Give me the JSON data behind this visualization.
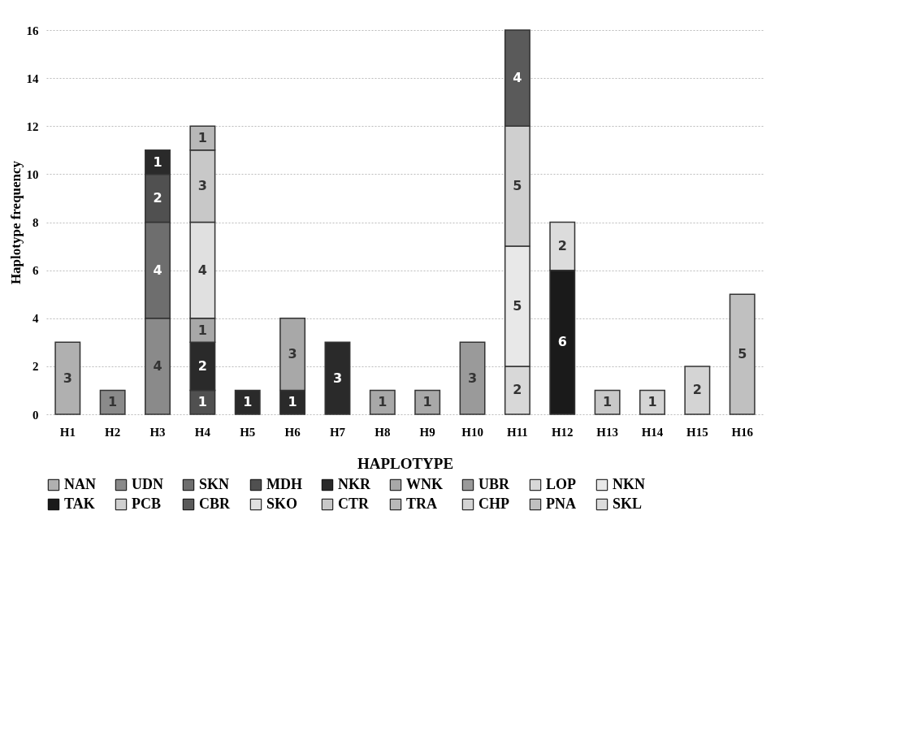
{
  "chart_data": {
    "type": "bar",
    "stacked": true,
    "xlabel": "HAPLOTYPE",
    "ylabel": "Haplotype frequency",
    "categories": [
      "H1",
      "H2",
      "H3",
      "H4",
      "H5",
      "H6",
      "H7",
      "H8",
      "H9",
      "H10",
      "H11",
      "H12",
      "H13",
      "H14",
      "H15",
      "H16"
    ],
    "ylim": [
      0,
      16
    ],
    "yticks": [
      0,
      2,
      4,
      6,
      8,
      10,
      12,
      14,
      16
    ],
    "grid": "y",
    "legend": "bottom",
    "data_labels": true,
    "series": [
      {
        "name": "NAN",
        "color": "#b0b0b0",
        "values": [
          3,
          null,
          null,
          null,
          null,
          null,
          null,
          null,
          null,
          null,
          null,
          null,
          null,
          null,
          null,
          null
        ]
      },
      {
        "name": "UDN",
        "color": "#8a8a8a",
        "values": [
          null,
          1,
          4,
          null,
          null,
          null,
          null,
          null,
          null,
          null,
          null,
          null,
          null,
          null,
          null,
          null
        ]
      },
      {
        "name": "SKN",
        "color": "#6e6e6e",
        "values": [
          null,
          null,
          4,
          null,
          null,
          null,
          null,
          null,
          null,
          null,
          null,
          null,
          null,
          null,
          null,
          null
        ]
      },
      {
        "name": "MDH",
        "color": "#505050",
        "values": [
          null,
          null,
          2,
          1,
          null,
          null,
          null,
          null,
          null,
          null,
          null,
          null,
          null,
          null,
          null,
          null
        ]
      },
      {
        "name": "NKR",
        "color": "#2a2a2a",
        "values": [
          null,
          null,
          1,
          2,
          1,
          1,
          3,
          null,
          null,
          null,
          null,
          null,
          null,
          null,
          null,
          null
        ]
      },
      {
        "name": "WNK",
        "color": "#a8a8a8",
        "values": [
          null,
          null,
          null,
          1,
          null,
          3,
          null,
          1,
          1,
          null,
          null,
          null,
          null,
          null,
          null,
          null
        ]
      },
      {
        "name": "UBR",
        "color": "#9a9a9a",
        "values": [
          null,
          null,
          null,
          null,
          null,
          null,
          null,
          null,
          null,
          3,
          null,
          null,
          null,
          null,
          null,
          null
        ]
      },
      {
        "name": "LOP",
        "color": "#d8d8d8",
        "values": [
          null,
          null,
          null,
          null,
          null,
          null,
          null,
          null,
          null,
          null,
          2,
          null,
          null,
          null,
          null,
          null
        ]
      },
      {
        "name": "NKN",
        "color": "#e8e8e8",
        "values": [
          null,
          null,
          null,
          null,
          null,
          null,
          null,
          null,
          null,
          null,
          5,
          null,
          null,
          null,
          null,
          null
        ]
      },
      {
        "name": "TAK",
        "color": "#1a1a1a",
        "values": [
          null,
          null,
          null,
          null,
          null,
          null,
          null,
          null,
          null,
          null,
          null,
          6,
          null,
          null,
          null,
          null
        ]
      },
      {
        "name": "PCB",
        "color": "#cfcfcf",
        "values": [
          null,
          null,
          null,
          null,
          null,
          null,
          null,
          null,
          null,
          null,
          5,
          null,
          null,
          null,
          null,
          null
        ]
      },
      {
        "name": "CBR",
        "color": "#5a5a5a",
        "values": [
          null,
          null,
          null,
          null,
          null,
          null,
          null,
          null,
          null,
          null,
          4,
          null,
          null,
          null,
          null,
          null
        ]
      },
      {
        "name": "SKO",
        "color": "#e0e0e0",
        "values": [
          null,
          null,
          null,
          4,
          null,
          null,
          null,
          null,
          null,
          null,
          null,
          null,
          null,
          null,
          null,
          null
        ]
      },
      {
        "name": "CTR",
        "color": "#c8c8c8",
        "values": [
          null,
          null,
          null,
          3,
          null,
          null,
          null,
          null,
          null,
          null,
          null,
          null,
          1,
          null,
          null,
          null
        ]
      },
      {
        "name": "TRA",
        "color": "#b8b8b8",
        "values": [
          null,
          null,
          null,
          1,
          null,
          null,
          null,
          null,
          null,
          null,
          null,
          null,
          null,
          null,
          null,
          null
        ]
      },
      {
        "name": "CHP",
        "color": "#d4d4d4",
        "values": [
          null,
          null,
          null,
          null,
          null,
          null,
          null,
          null,
          null,
          null,
          null,
          null,
          null,
          1,
          2,
          null
        ]
      },
      {
        "name": "PNA",
        "color": "#c0c0c0",
        "values": [
          null,
          null,
          null,
          null,
          null,
          null,
          null,
          null,
          null,
          null,
          null,
          null,
          null,
          null,
          null,
          5
        ]
      },
      {
        "name": "SKL",
        "color": "#dcdcdc",
        "values": [
          null,
          null,
          null,
          null,
          null,
          null,
          null,
          null,
          null,
          null,
          null,
          2,
          null,
          null,
          null,
          null
        ]
      }
    ]
  }
}
